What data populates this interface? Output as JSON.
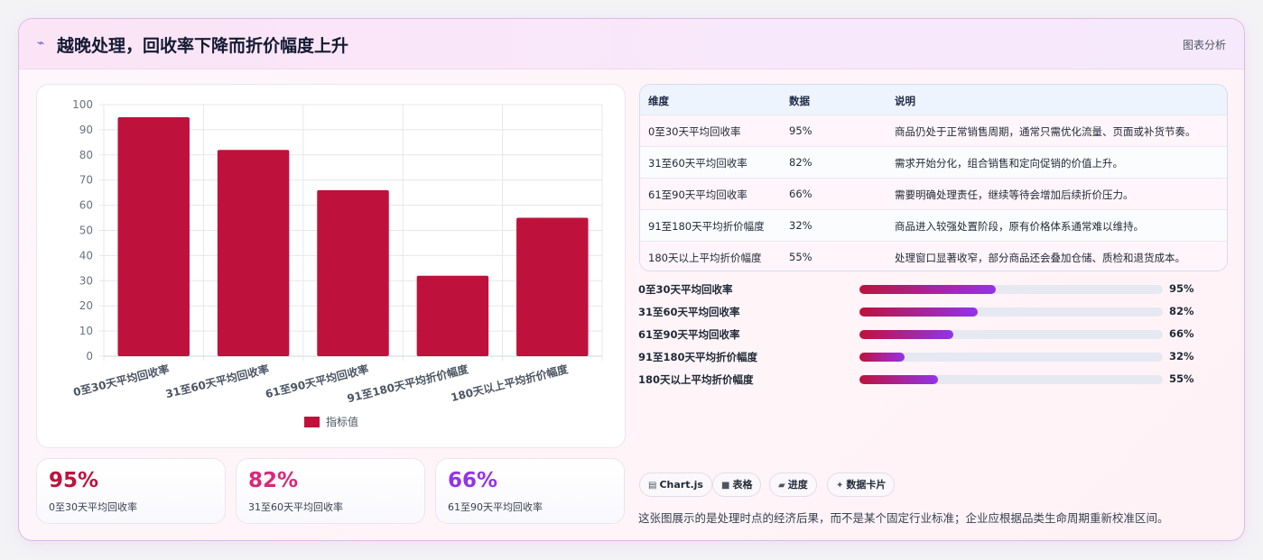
{
  "header": {
    "icon": "trend-down-icon",
    "title": "越晚处理，回收率下降而折价幅度上升",
    "tag": "图表分析"
  },
  "chart_data": {
    "type": "bar",
    "categories": [
      "0至30天平均回收率",
      "31至60天平均回收率",
      "61至90天平均回收率",
      "91至180天平均折价幅度",
      "180天以上平均折价幅度"
    ],
    "series": [
      {
        "name": "指标值",
        "values": [
          95,
          82,
          66,
          32,
          55
        ],
        "color": "#be123c"
      }
    ],
    "ylim": [
      0,
      100
    ],
    "yticks": [
      0,
      10,
      20,
      30,
      40,
      50,
      60,
      70,
      80,
      90,
      100
    ],
    "grid": true,
    "legend": "bottom"
  },
  "kpis": [
    {
      "value": "95%",
      "label": "0至30天平均回收率",
      "color": "#be123c"
    },
    {
      "value": "82%",
      "label": "31至60天平均回收率",
      "color": "#db2777"
    },
    {
      "value": "66%",
      "label": "61至90天平均回收率",
      "color": "#9333ea"
    }
  ],
  "table": {
    "headers": [
      "维度",
      "数据",
      "说明"
    ],
    "rows": [
      [
        "0至30天平均回收率",
        "95%",
        "商品仍处于正常销售周期，通常只需优化流量、页面或补货节奏。"
      ],
      [
        "31至60天平均回收率",
        "82%",
        "需求开始分化，组合销售和定向促销的价值上升。"
      ],
      [
        "61至90天平均回收率",
        "66%",
        "需要明确处理责任，继续等待会增加后续折价压力。"
      ],
      [
        "91至180天平均折价幅度",
        "32%",
        "商品进入较强处置阶段，原有价格体系通常难以维持。"
      ],
      [
        "180天以上平均折价幅度",
        "55%",
        "处理窗口显著收窄，部分商品还会叠加仓储、质检和退货成本。"
      ]
    ]
  },
  "progress": [
    {
      "label": "0至30天平均回收率",
      "value": "95%",
      "fill": 0.45
    },
    {
      "label": "31至60天平均回收率",
      "value": "82%",
      "fill": 0.39
    },
    {
      "label": "61至90天平均回收率",
      "value": "66%",
      "fill": 0.31
    },
    {
      "label": "91至180天平均折价幅度",
      "value": "32%",
      "fill": 0.15
    },
    {
      "label": "180天以上平均折价幅度",
      "value": "55%",
      "fill": 0.26
    }
  ],
  "chips": [
    {
      "icon": "chart-icon",
      "glyph": "▤",
      "label": "Chart.js"
    },
    {
      "icon": "table-icon",
      "glyph": "■",
      "label": "表格"
    },
    {
      "icon": "progress-icon",
      "glyph": "▰",
      "label": "进度"
    },
    {
      "icon": "sparkle-icon",
      "glyph": "✦",
      "label": "数据卡片"
    }
  ],
  "footnote": "这张图展示的是处理时点的经济后果，而不是某个固定行业标准；企业应根据品类生命周期重新校准区间。"
}
